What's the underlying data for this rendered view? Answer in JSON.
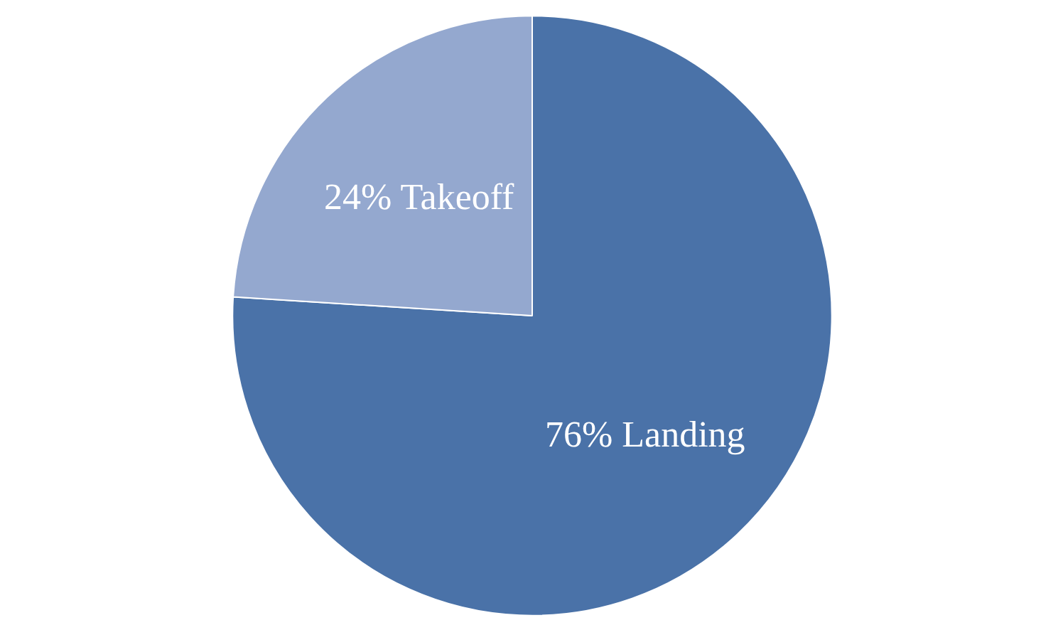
{
  "chart_data": {
    "type": "pie",
    "categories": [
      "Landing",
      "Takeoff"
    ],
    "values": [
      76,
      24
    ],
    "colors": [
      "#4a72a8",
      "#94a8cf"
    ],
    "value_labels": [
      "76%",
      "24%"
    ]
  }
}
